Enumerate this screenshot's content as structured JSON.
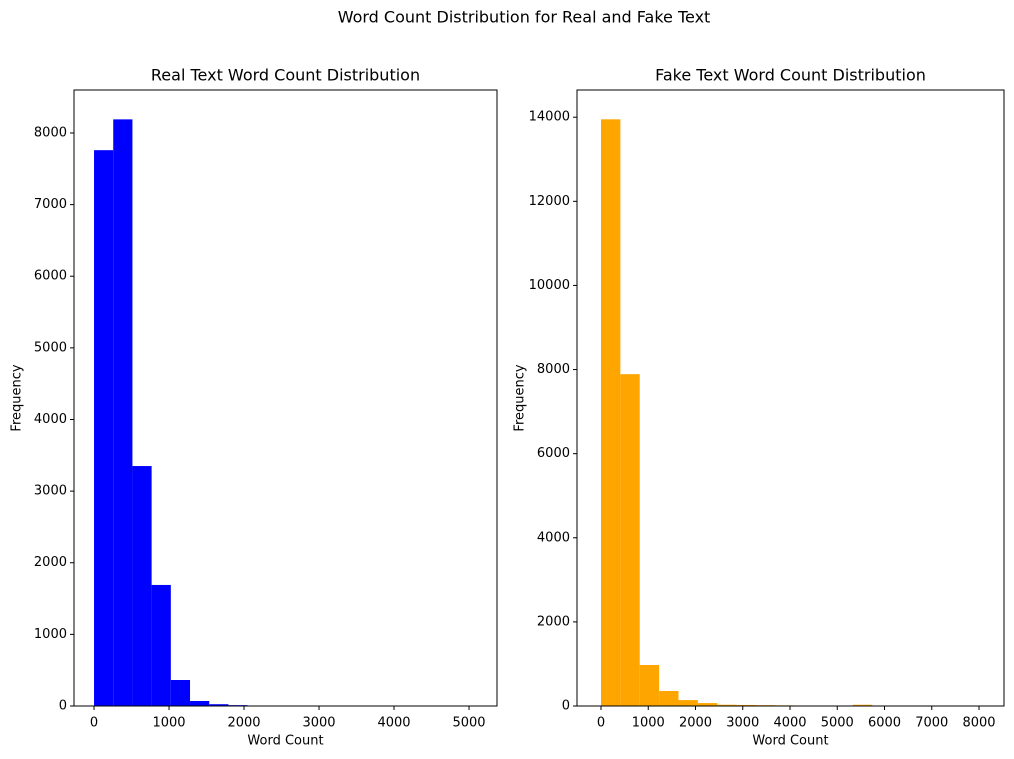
{
  "title": "Word Count Distribution for Real and Fake Text",
  "chart_data": [
    {
      "type": "histogram",
      "title": "Real Text Word Count Distribution",
      "x_label": "Word Count",
      "y_label": "Frequency",
      "color": "#0000ff",
      "bins": [
        0,
        256,
        512,
        768,
        1024,
        1280,
        1536,
        1792,
        2048,
        2304,
        2560,
        2816,
        3072,
        3328,
        3584,
        3840,
        4096,
        4352,
        4608,
        4864,
        5120
      ],
      "values": [
        7760,
        8190,
        3350,
        1690,
        363,
        70,
        25,
        12,
        5,
        3,
        2,
        1,
        0,
        0,
        0,
        0,
        0,
        0,
        0,
        1
      ],
      "xlim": [
        -267,
        5373
      ],
      "ylim": [
        0,
        8600
      ],
      "xticks": [
        0,
        1000,
        2000,
        3000,
        4000,
        5000
      ],
      "yticks": [
        0,
        1000,
        2000,
        3000,
        4000,
        5000,
        6000,
        7000,
        8000
      ]
    },
    {
      "type": "histogram",
      "title": "Fake Text Word Count Distribution",
      "x_label": "Word Count",
      "y_label": "Frequency",
      "color": "#ffa500",
      "bins": [
        0,
        410,
        820,
        1230,
        1640,
        2050,
        2460,
        2870,
        3280,
        3690,
        4100,
        4510,
        4920,
        5330,
        5740,
        6150,
        6560,
        6970,
        7380,
        7790,
        8200
      ],
      "values": [
        13950,
        7890,
        975,
        357,
        140,
        70,
        30,
        25,
        20,
        15,
        10,
        5,
        0,
        30,
        0,
        0,
        0,
        0,
        0,
        5
      ],
      "xlim": [
        -508,
        8529
      ],
      "ylim": [
        0,
        14647
      ],
      "xticks": [
        0,
        1000,
        2000,
        3000,
        4000,
        5000,
        6000,
        7000,
        8000
      ],
      "yticks": [
        0,
        2000,
        4000,
        6000,
        8000,
        10000,
        12000,
        14000
      ]
    }
  ]
}
